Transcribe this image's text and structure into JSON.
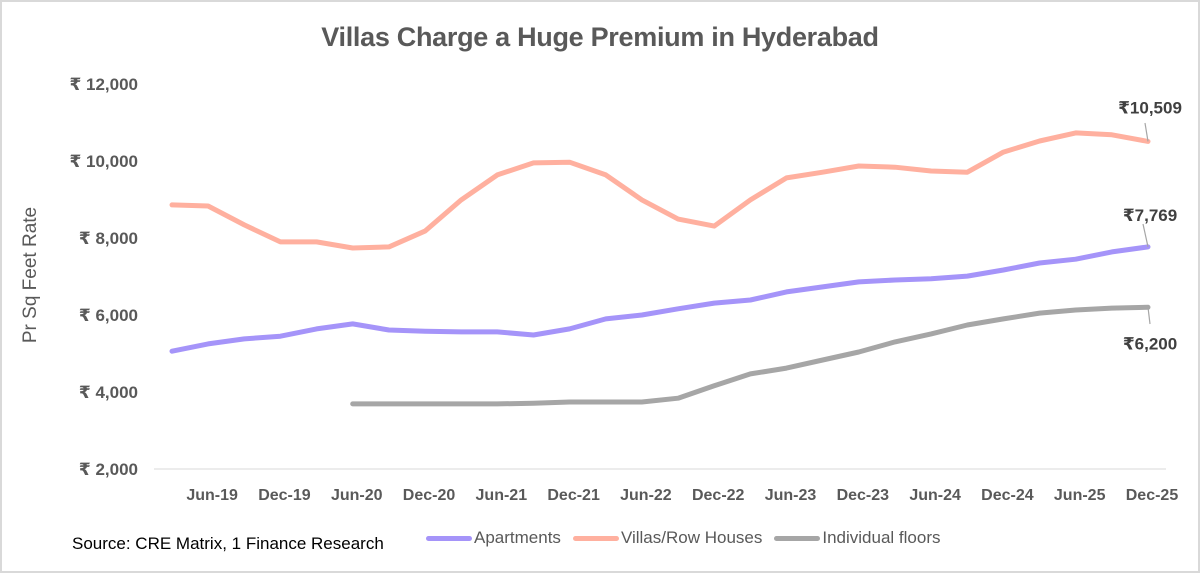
{
  "chart_data": {
    "type": "line",
    "title": "Villas Charge a Huge Premium in Hyderabad",
    "xlabel": "",
    "ylabel": "Pr Sq Feet Rate",
    "ylim": [
      2000,
      12000
    ],
    "yticks": [
      2000,
      4000,
      6000,
      8000,
      10000,
      12000
    ],
    "ytick_labels": [
      "₹ 2,000",
      "₹ 4,000",
      "₹ 6,000",
      "₹ 8,000",
      "₹ 10,000",
      "₹ 12,000"
    ],
    "grid": false,
    "legend_position": "bottom",
    "x": [
      "Mar-19",
      "Jun-19",
      "Sep-19",
      "Dec-19",
      "Mar-20",
      "Jun-20",
      "Sep-20",
      "Dec-20",
      "Mar-21",
      "Jun-21",
      "Sep-21",
      "Dec-21",
      "Mar-22",
      "Jun-22",
      "Sep-22",
      "Dec-22",
      "Mar-23",
      "Jun-23",
      "Sep-23",
      "Dec-23",
      "Mar-24",
      "Jun-24",
      "Sep-24",
      "Dec-24",
      "Mar-25",
      "Jun-25",
      "Sep-25",
      "Dec-25"
    ],
    "xtick_labels": [
      "Jun-19",
      "Dec-19",
      "Jun-20",
      "Dec-20",
      "Jun-21",
      "Dec-21",
      "Jun-22",
      "Dec-22",
      "Jun-23",
      "Dec-23",
      "Jun-24",
      "Dec-24",
      "Jun-25",
      "Dec-25"
    ],
    "series": [
      {
        "name": "Apartments",
        "color": "#a594f9",
        "values": [
          5060,
          5250,
          5380,
          5450,
          5640,
          5770,
          5610,
          5580,
          5560,
          5560,
          5480,
          5640,
          5900,
          6000,
          6160,
          6310,
          6390,
          6600,
          6730,
          6860,
          6910,
          6940,
          7010,
          7170,
          7350,
          7450,
          7640,
          7769
        ],
        "end_label": "₹7,769"
      },
      {
        "name": "Villas/Row Houses",
        "color": "#ffb09f",
        "values": [
          8860,
          8830,
          8340,
          7900,
          7900,
          7740,
          7770,
          8180,
          8990,
          9640,
          9950,
          9970,
          9640,
          8990,
          8490,
          8310,
          8990,
          9560,
          9710,
          9870,
          9840,
          9740,
          9710,
          10230,
          10520,
          10730,
          10680,
          10509
        ],
        "end_label": "₹10,509"
      },
      {
        "name": "Individual floors",
        "color": "#a6a6a6",
        "values": [
          null,
          null,
          null,
          null,
          null,
          3690,
          3690,
          3690,
          3690,
          3690,
          3710,
          3740,
          3740,
          3740,
          3840,
          4160,
          4470,
          4620,
          4830,
          5040,
          5300,
          5510,
          5740,
          5900,
          6050,
          6130,
          6180,
          6200
        ],
        "end_label": "₹6,200"
      }
    ],
    "source": "Source: CRE Matrix, 1 Finance Research"
  }
}
